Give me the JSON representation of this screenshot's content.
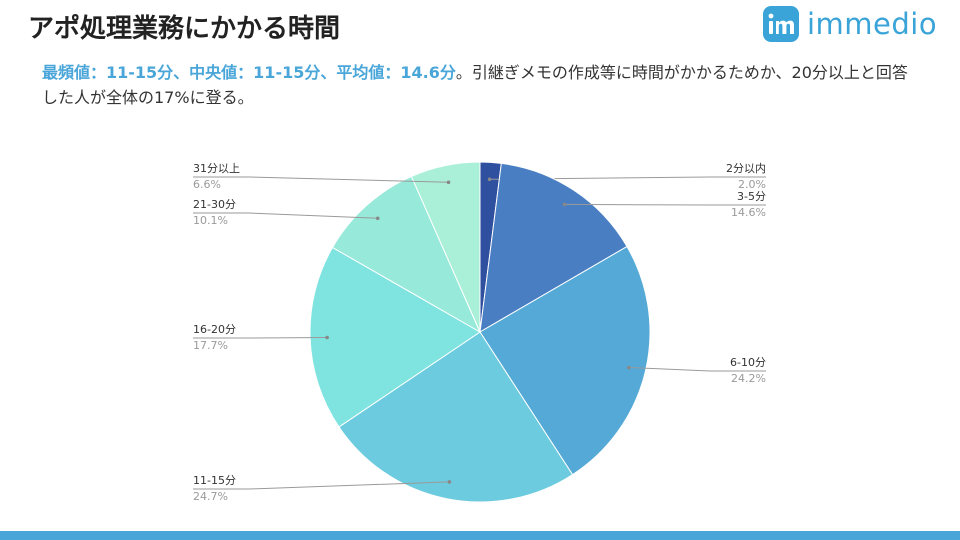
{
  "slide": {
    "title": "アポ処理業務にかかる時間",
    "subtitle_highlight": "最頻値：11-15分、中央値：11-15分、平均値：14.6分",
    "subtitle_rest": "。引継ぎメモの作成等に時間がかかるためか、20分以上と回答した人が全体の17%に登る。",
    "logo_text": "immedio",
    "logo_mark": "im",
    "accent_color": "#4aa6d9"
  },
  "chart_data": {
    "type": "pie",
    "title": "",
    "slices": [
      {
        "label": "2分以内",
        "value": 2.0,
        "display": "2.0%",
        "color": "#2f4f9f"
      },
      {
        "label": "3-5分",
        "value": 14.6,
        "display": "14.6%",
        "color": "#4a7ec2"
      },
      {
        "label": "6-10分",
        "value": 24.2,
        "display": "24.2%",
        "color": "#55a9d6"
      },
      {
        "label": "11-15分",
        "value": 24.7,
        "display": "24.7%",
        "color": "#6ccbde"
      },
      {
        "label": "16-20分",
        "value": 17.7,
        "display": "17.7%",
        "color": "#7fe3e0"
      },
      {
        "label": "21-30分",
        "value": 10.1,
        "display": "10.1%",
        "color": "#97e9d9"
      },
      {
        "label": "31分以上",
        "value": 6.6,
        "display": "6.6%",
        "color": "#aaf0d8"
      }
    ]
  }
}
